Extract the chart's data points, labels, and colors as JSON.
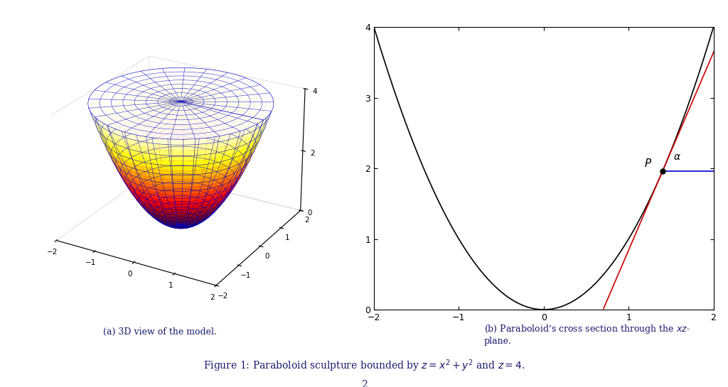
{
  "title_a": "(a) 3D view of the model.",
  "page_number": "2",
  "point_P": [
    1.4,
    1.96
  ],
  "tangent_color": "#cc0000",
  "horizontal_color": "#0000cc",
  "curve_color": "#000000",
  "point_color": "#000000",
  "xlim": [
    -2,
    2
  ],
  "ylim": [
    0,
    4
  ],
  "xticks": [
    -2,
    -1,
    0,
    1,
    2
  ],
  "yticks": [
    0,
    1,
    2,
    3,
    4
  ],
  "surface_rlim": 2,
  "elev": 25,
  "azim": -60,
  "grid_color": "#0000cc",
  "grid_lw": 0.4,
  "n_r": 40,
  "n_theta": 50
}
